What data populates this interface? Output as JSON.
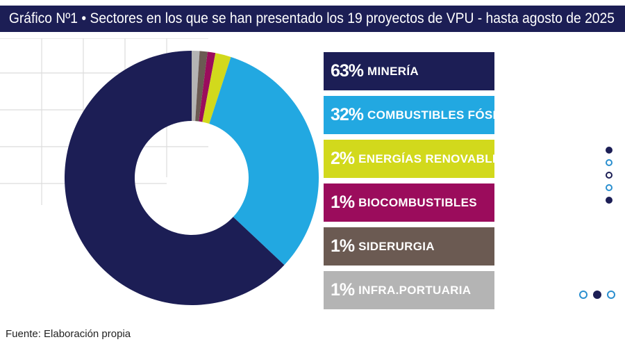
{
  "title": "Gráfico Nº1 • Sectores en los que se han presentado los 19 proyectos de VPU - hasta agosto de 2025",
  "source": "Fuente: Elaboración propia",
  "colors": {
    "title_bg": "#1c1e55",
    "mineria": "#1c1e55",
    "combustibles_fosiles": "#22a8e1",
    "energias_renovables": "#d2d91c",
    "biocombustibles": "#9b0c5c",
    "siderurgia": "#6b5a52",
    "infra_portuaria": "#b4b4b4"
  },
  "chart_data": {
    "type": "pie",
    "donut": true,
    "title": "Gráfico Nº1 • Sectores en los que se han presentado los 19 proyectos de VPU - hasta agosto de 2025",
    "unit": "%",
    "legend_position": "right",
    "slices": [
      {
        "label": "MINERÍA",
        "value": 63,
        "value_label": "63%",
        "color": "#1c1e55"
      },
      {
        "label": "COMBUSTIBLES FÓSILES",
        "value": 32,
        "value_label": "32%",
        "color": "#22a8e1"
      },
      {
        "label": "ENERGÍAS RENOVABLES",
        "value": 2,
        "value_label": "2%",
        "color": "#d2d91c"
      },
      {
        "label": "BIOCOMBUSTIBLES",
        "value": 1,
        "value_label": "1%",
        "color": "#9b0c5c"
      },
      {
        "label": "SIDERURGIA",
        "value": 1,
        "value_label": "1%",
        "color": "#6b5a52"
      },
      {
        "label": "INFRA.PORTUARIA",
        "value": 1,
        "value_label": "1%",
        "color": "#b4b4b4"
      }
    ]
  },
  "pager_vertical": [
    "filled",
    "open",
    "open-dark",
    "open",
    "filled"
  ],
  "pager_horizontal": [
    "open",
    "filled",
    "open"
  ]
}
